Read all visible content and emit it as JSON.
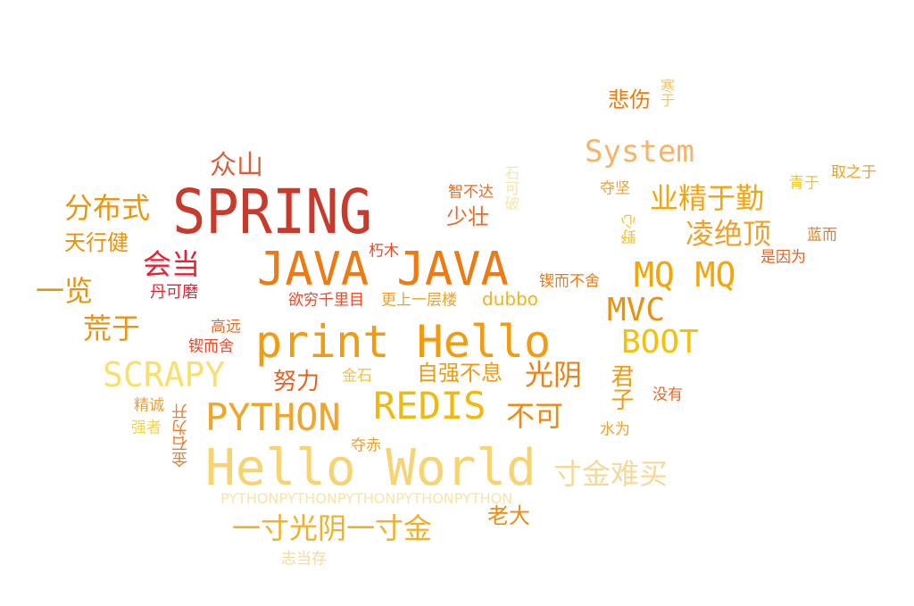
{
  "words": [
    {
      "text": "SPRING",
      "color": "#c83b2c"
    },
    {
      "text": "JAVA JAVA",
      "color": "#f07a12"
    },
    {
      "text": "print Hello",
      "color": "#f29a10"
    },
    {
      "text": "Hello World",
      "color": "#f7d372"
    },
    {
      "text": "PYTHON",
      "color": "#f1a52a"
    },
    {
      "text": "REDIS",
      "color": "#f1b90c"
    },
    {
      "text": "SCRAPY",
      "color": "#f9df70"
    },
    {
      "text": "System",
      "color": "#f5b46a"
    },
    {
      "text": "MQ MQ",
      "color": "#f5a50c"
    },
    {
      "text": "MVC",
      "color": "#e8920e"
    },
    {
      "text": "BOOT",
      "color": "#f5bf0d"
    },
    {
      "text": "一寸光阴一寸金",
      "color": "#f0b02a"
    },
    {
      "text": "寸金难买",
      "color": "#f7d89a"
    },
    {
      "text": "业精于勤",
      "color": "#f5a50c"
    },
    {
      "text": "凌绝顶",
      "color": "#f0a02a"
    },
    {
      "text": "分布式",
      "color": "#e8960f"
    },
    {
      "text": "一览",
      "color": "#e8920e"
    },
    {
      "text": "荒于",
      "color": "#ea9412"
    },
    {
      "text": "会当",
      "color": "#e62233"
    },
    {
      "text": "众山",
      "color": "#d8603a"
    },
    {
      "text": "天行健",
      "color": "#e8920e"
    },
    {
      "text": "丹可磨",
      "color": "#e62233"
    },
    {
      "text": "高远",
      "color": "#e86a2a"
    },
    {
      "text": "锲而舍",
      "color": "#e84a2a"
    },
    {
      "text": "精诚",
      "color": "#f0a030"
    },
    {
      "text": "强者",
      "color": "#f5d540"
    },
    {
      "text": "金石为开",
      "color": "#e87f30",
      "vertical": true
    },
    {
      "text": "努力",
      "color": "#e8601f"
    },
    {
      "text": "金石",
      "color": "#f2c23a"
    },
    {
      "text": "自强不息",
      "color": "#f09a14"
    },
    {
      "text": "光阴",
      "color": "#ed8212"
    },
    {
      "text": "不可",
      "color": "#ef8a10"
    },
    {
      "text": "君子",
      "color": "#f29a10",
      "vertical": true
    },
    {
      "text": "没有",
      "color": "#e86a20"
    },
    {
      "text": "水为",
      "color": "#f0a030"
    },
    {
      "text": "夺赤",
      "color": "#f0a030"
    },
    {
      "text": "PYTHONPYTHONPYTHONPYTHONPYTHON",
      "color": "#f9e4a6"
    },
    {
      "text": "老大",
      "color": "#ef8a10"
    },
    {
      "text": "志当存",
      "color": "#f7d89a"
    },
    {
      "text": "欲穷千里目",
      "color": "#e84a2a"
    },
    {
      "text": "更上一层楼",
      "color": "#f0a02a"
    },
    {
      "text": "dubbo",
      "color": "#f3b21a"
    },
    {
      "text": "锲而不舍",
      "color": "#ec7a10"
    },
    {
      "text": "朽木",
      "color": "#e84a2a"
    },
    {
      "text": "智不达",
      "color": "#e86a20"
    },
    {
      "text": "少壮",
      "color": "#e86a20"
    },
    {
      "text": "石可破",
      "color": "#f7e6b0",
      "vertical": true
    },
    {
      "text": "悲伤",
      "color": "#ec7a10"
    },
    {
      "text": "寒于",
      "color": "#f3c36a",
      "vertical": true
    },
    {
      "text": "夺坚",
      "color": "#f0a030"
    },
    {
      "text": "野心",
      "color": "#f2c23a",
      "vertical": true
    },
    {
      "text": "青于",
      "color": "#f5c418"
    },
    {
      "text": "取之于",
      "color": "#f3a020"
    },
    {
      "text": "蓝而",
      "color": "#e87f20"
    },
    {
      "text": "是因为",
      "color": "#e8601f"
    }
  ]
}
